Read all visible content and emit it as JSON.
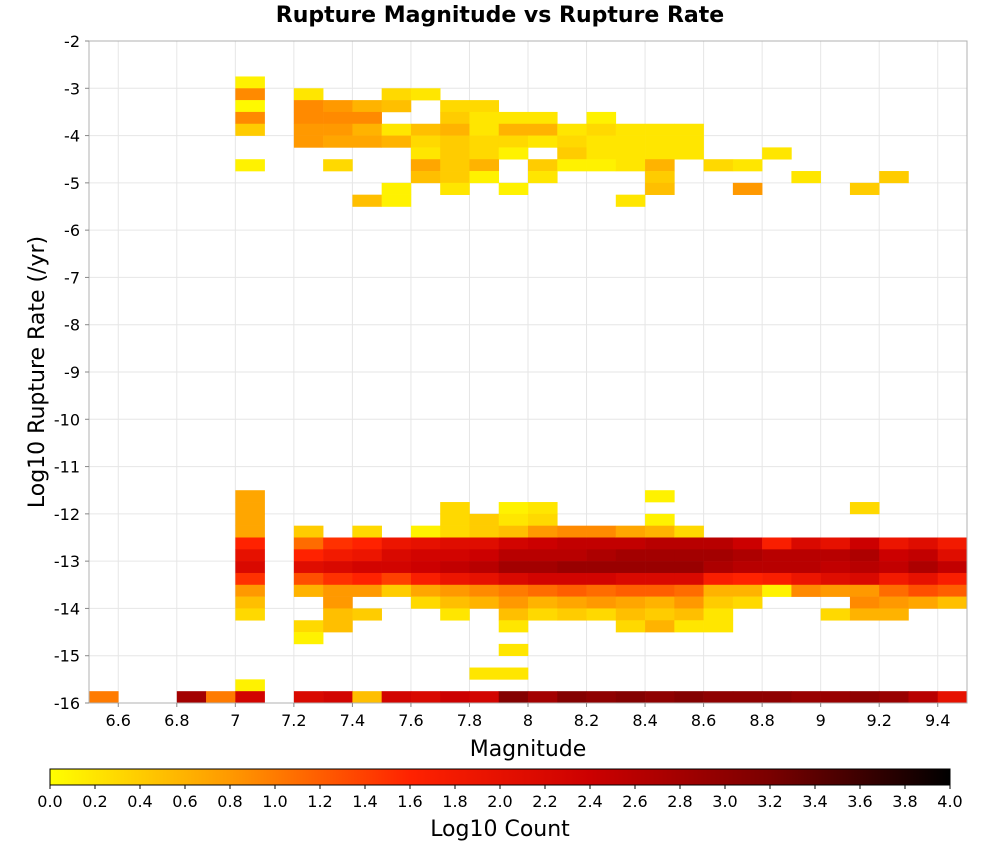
{
  "chart_data": {
    "type": "heatmap",
    "title": "Rupture Magnitude vs Rupture Rate",
    "xlabel": "Magnitude",
    "ylabel": "Log10 Rupture Rate (/yr)",
    "xlim": [
      6.5,
      9.5
    ],
    "ylim": [
      -16,
      -2
    ],
    "x_ticks": [
      "6.6",
      "6.8",
      "7",
      "7.2",
      "7.4",
      "7.6",
      "7.8",
      "8",
      "8.2",
      "8.4",
      "8.6",
      "8.8",
      "9",
      "9.2",
      "9.4"
    ],
    "y_ticks": [
      "-2",
      "-3",
      "-4",
      "-5",
      "-6",
      "-7",
      "-8",
      "-9",
      "-10",
      "-11",
      "-12",
      "-13",
      "-14",
      "-15",
      "-16"
    ],
    "x_bin_width": 0.1,
    "y_bin_height": 0.25,
    "grid": true,
    "colorbar": {
      "label": "Log10 Count",
      "min": 0.0,
      "max": 4.0,
      "ticks": [
        "0.0",
        "0.2",
        "0.4",
        "0.6",
        "0.8",
        "1.0",
        "1.2",
        "1.4",
        "1.6",
        "1.8",
        "2.0",
        "2.2",
        "2.4",
        "2.6",
        "2.8",
        "3.0",
        "3.2",
        "3.4",
        "3.6",
        "3.8",
        "4.0"
      ],
      "colors": [
        "#ffff00",
        "#ff9900",
        "#ff2200",
        "#cc0000",
        "#7a0000",
        "#000000"
      ]
    },
    "cells_note": "each cell: [x_center, y_center, log10_count]",
    "cells": [
      [
        7.05,
        -2.875,
        0.1
      ],
      [
        7.05,
        -3.125,
        0.9
      ],
      [
        7.05,
        -3.375,
        0.05
      ],
      [
        7.05,
        -3.625,
        0.9
      ],
      [
        7.05,
        -3.875,
        0.4
      ],
      [
        7.05,
        -4.625,
        0.1
      ],
      [
        7.25,
        -3.125,
        0.2
      ],
      [
        7.25,
        -3.375,
        0.9
      ],
      [
        7.25,
        -3.625,
        0.9
      ],
      [
        7.25,
        -3.875,
        0.8
      ],
      [
        7.25,
        -4.125,
        0.8
      ],
      [
        7.35,
        -3.375,
        0.8
      ],
      [
        7.35,
        -3.625,
        0.9
      ],
      [
        7.35,
        -3.875,
        0.8
      ],
      [
        7.35,
        -4.125,
        0.7
      ],
      [
        7.35,
        -4.625,
        0.3
      ],
      [
        7.45,
        -3.375,
        0.6
      ],
      [
        7.45,
        -3.625,
        0.9
      ],
      [
        7.45,
        -3.875,
        0.6
      ],
      [
        7.45,
        -4.125,
        0.7
      ],
      [
        7.45,
        -5.375,
        0.5
      ],
      [
        7.55,
        -3.125,
        0.3
      ],
      [
        7.55,
        -3.375,
        0.5
      ],
      [
        7.55,
        -3.875,
        0.2
      ],
      [
        7.55,
        -4.125,
        0.6
      ],
      [
        7.55,
        -5.125,
        0.1
      ],
      [
        7.55,
        -5.375,
        0.1
      ],
      [
        7.65,
        -3.125,
        0.2
      ],
      [
        7.65,
        -3.875,
        0.5
      ],
      [
        7.65,
        -4.125,
        0.3
      ],
      [
        7.65,
        -4.375,
        0.2
      ],
      [
        7.65,
        -4.625,
        0.7
      ],
      [
        7.65,
        -4.875,
        0.5
      ],
      [
        7.75,
        -3.375,
        0.3
      ],
      [
        7.75,
        -3.625,
        0.4
      ],
      [
        7.75,
        -3.875,
        0.6
      ],
      [
        7.75,
        -4.125,
        0.4
      ],
      [
        7.75,
        -4.375,
        0.4
      ],
      [
        7.75,
        -4.625,
        0.4
      ],
      [
        7.75,
        -4.875,
        0.4
      ],
      [
        7.75,
        -5.125,
        0.2
      ],
      [
        7.85,
        -3.375,
        0.3
      ],
      [
        7.85,
        -3.625,
        0.2
      ],
      [
        7.85,
        -3.875,
        0.2
      ],
      [
        7.85,
        -4.125,
        0.3
      ],
      [
        7.85,
        -4.375,
        0.3
      ],
      [
        7.85,
        -4.625,
        0.6
      ],
      [
        7.85,
        -4.875,
        0.1
      ],
      [
        7.95,
        -3.625,
        0.2
      ],
      [
        7.95,
        -3.875,
        0.6
      ],
      [
        7.95,
        -4.125,
        0.3
      ],
      [
        7.95,
        -4.375,
        0.1
      ],
      [
        7.95,
        -5.125,
        0.1
      ],
      [
        8.05,
        -3.625,
        0.2
      ],
      [
        8.05,
        -3.875,
        0.6
      ],
      [
        8.05,
        -4.125,
        0.2
      ],
      [
        8.05,
        -4.625,
        0.4
      ],
      [
        8.05,
        -4.875,
        0.2
      ],
      [
        8.15,
        -3.875,
        0.2
      ],
      [
        8.15,
        -4.125,
        0.3
      ],
      [
        8.15,
        -4.375,
        0.4
      ],
      [
        8.15,
        -4.625,
        0.1
      ],
      [
        8.25,
        -3.625,
        0.1
      ],
      [
        8.25,
        -3.875,
        0.3
      ],
      [
        8.25,
        -4.125,
        0.2
      ],
      [
        8.25,
        -4.375,
        0.2
      ],
      [
        8.25,
        -4.625,
        0.1
      ],
      [
        8.35,
        -3.875,
        0.2
      ],
      [
        8.35,
        -4.125,
        0.2
      ],
      [
        8.35,
        -4.375,
        0.2
      ],
      [
        8.35,
        -4.625,
        0.2
      ],
      [
        8.35,
        -5.375,
        0.2
      ],
      [
        8.45,
        -3.875,
        0.2
      ],
      [
        8.45,
        -4.125,
        0.2
      ],
      [
        8.45,
        -4.375,
        0.2
      ],
      [
        8.45,
        -4.625,
        0.6
      ],
      [
        8.45,
        -4.875,
        0.4
      ],
      [
        8.45,
        -5.125,
        0.5
      ],
      [
        8.55,
        -3.875,
        0.2
      ],
      [
        8.55,
        -4.125,
        0.2
      ],
      [
        8.55,
        -4.375,
        0.2
      ],
      [
        8.65,
        -4.625,
        0.3
      ],
      [
        8.75,
        -4.625,
        0.2
      ],
      [
        8.75,
        -5.125,
        0.8
      ],
      [
        8.85,
        -4.375,
        0.2
      ],
      [
        8.95,
        -4.875,
        0.2
      ],
      [
        9.15,
        -5.125,
        0.4
      ],
      [
        9.25,
        -4.875,
        0.4
      ],
      [
        7.05,
        -11.625,
        0.7
      ],
      [
        7.05,
        -11.875,
        0.7
      ],
      [
        7.05,
        -12.125,
        0.7
      ],
      [
        7.05,
        -12.375,
        0.7
      ],
      [
        7.05,
        -12.625,
        1.6
      ],
      [
        7.05,
        -12.875,
        2.0
      ],
      [
        7.05,
        -13.125,
        2.2
      ],
      [
        7.05,
        -13.375,
        1.5
      ],
      [
        7.05,
        -13.625,
        0.8
      ],
      [
        7.05,
        -13.875,
        0.5
      ],
      [
        7.05,
        -14.125,
        0.3
      ],
      [
        7.25,
        -12.375,
        0.4
      ],
      [
        7.25,
        -12.625,
        1.1
      ],
      [
        7.25,
        -12.875,
        1.6
      ],
      [
        7.25,
        -13.125,
        2.1
      ],
      [
        7.25,
        -13.375,
        1.3
      ],
      [
        7.25,
        -13.625,
        0.6
      ],
      [
        7.25,
        -14.375,
        0.3
      ],
      [
        7.25,
        -14.625,
        0.1
      ],
      [
        7.35,
        -12.625,
        1.5
      ],
      [
        7.35,
        -12.875,
        1.8
      ],
      [
        7.35,
        -13.125,
        2.2
      ],
      [
        7.35,
        -13.375,
        1.5
      ],
      [
        7.35,
        -13.625,
        0.8
      ],
      [
        7.35,
        -13.875,
        0.8
      ],
      [
        7.35,
        -14.125,
        0.5
      ],
      [
        7.35,
        -14.375,
        0.5
      ],
      [
        7.45,
        -12.375,
        0.3
      ],
      [
        7.45,
        -12.625,
        1.6
      ],
      [
        7.45,
        -12.875,
        1.9
      ],
      [
        7.45,
        -13.125,
        2.3
      ],
      [
        7.45,
        -13.375,
        1.6
      ],
      [
        7.45,
        -13.625,
        0.8
      ],
      [
        7.45,
        -14.125,
        0.4
      ],
      [
        7.55,
        -12.625,
        1.9
      ],
      [
        7.55,
        -12.875,
        2.2
      ],
      [
        7.55,
        -13.125,
        2.3
      ],
      [
        7.55,
        -13.375,
        1.4
      ],
      [
        7.55,
        -13.625,
        0.4
      ],
      [
        7.65,
        -12.375,
        0.1
      ],
      [
        7.65,
        -12.625,
        2.0
      ],
      [
        7.65,
        -12.875,
        2.3
      ],
      [
        7.65,
        -13.125,
        2.4
      ],
      [
        7.65,
        -13.375,
        1.7
      ],
      [
        7.65,
        -13.625,
        0.7
      ],
      [
        7.65,
        -13.875,
        0.3
      ],
      [
        7.75,
        -11.875,
        0.3
      ],
      [
        7.75,
        -12.125,
        0.3
      ],
      [
        7.75,
        -12.375,
        0.3
      ],
      [
        7.75,
        -12.625,
        2.1
      ],
      [
        7.75,
        -12.875,
        2.3
      ],
      [
        7.75,
        -13.125,
        2.5
      ],
      [
        7.75,
        -13.375,
        1.9
      ],
      [
        7.75,
        -13.625,
        0.8
      ],
      [
        7.75,
        -13.875,
        0.5
      ],
      [
        7.75,
        -14.125,
        0.2
      ],
      [
        7.85,
        -12.125,
        0.4
      ],
      [
        7.85,
        -12.375,
        0.4
      ],
      [
        7.85,
        -12.625,
        2.1
      ],
      [
        7.85,
        -12.875,
        2.4
      ],
      [
        7.85,
        -13.125,
        2.6
      ],
      [
        7.85,
        -13.375,
        2.0
      ],
      [
        7.85,
        -13.625,
        0.9
      ],
      [
        7.85,
        -13.875,
        0.6
      ],
      [
        7.85,
        -15.375,
        0.2
      ],
      [
        7.95,
        -11.875,
        0.1
      ],
      [
        7.95,
        -12.125,
        0.2
      ],
      [
        7.95,
        -12.375,
        0.5
      ],
      [
        7.95,
        -12.625,
        2.3
      ],
      [
        7.95,
        -12.875,
        2.6
      ],
      [
        7.95,
        -13.125,
        2.8
      ],
      [
        7.95,
        -13.375,
        2.2
      ],
      [
        7.95,
        -13.625,
        1.0
      ],
      [
        7.95,
        -13.875,
        0.8
      ],
      [
        7.95,
        -14.125,
        0.5
      ],
      [
        7.95,
        -14.375,
        0.2
      ],
      [
        7.95,
        -14.875,
        0.2
      ],
      [
        7.95,
        -15.375,
        0.2
      ],
      [
        8.05,
        -11.875,
        0.2
      ],
      [
        8.05,
        -12.125,
        0.3
      ],
      [
        8.05,
        -12.375,
        0.8
      ],
      [
        8.05,
        -12.625,
        2.4
      ],
      [
        8.05,
        -12.875,
        2.6
      ],
      [
        8.05,
        -13.125,
        2.8
      ],
      [
        8.05,
        -13.375,
        2.3
      ],
      [
        8.05,
        -13.625,
        1.1
      ],
      [
        8.05,
        -13.875,
        0.6
      ],
      [
        8.05,
        -14.125,
        0.3
      ],
      [
        8.15,
        -12.375,
        0.9
      ],
      [
        8.15,
        -12.625,
        2.5
      ],
      [
        8.15,
        -12.875,
        2.6
      ],
      [
        8.15,
        -13.125,
        2.9
      ],
      [
        8.15,
        -13.375,
        2.3
      ],
      [
        8.15,
        -13.625,
        1.2
      ],
      [
        8.15,
        -13.875,
        0.7
      ],
      [
        8.15,
        -14.125,
        0.4
      ],
      [
        8.25,
        -12.375,
        0.9
      ],
      [
        8.25,
        -12.625,
        2.5
      ],
      [
        8.25,
        -12.875,
        2.7
      ],
      [
        8.25,
        -13.125,
        2.9
      ],
      [
        8.25,
        -13.375,
        2.3
      ],
      [
        8.25,
        -13.625,
        1.1
      ],
      [
        8.25,
        -13.875,
        0.8
      ],
      [
        8.25,
        -14.125,
        0.3
      ],
      [
        8.35,
        -12.375,
        0.7
      ],
      [
        8.35,
        -12.625,
        2.5
      ],
      [
        8.35,
        -12.875,
        2.8
      ],
      [
        8.35,
        -13.125,
        2.9
      ],
      [
        8.35,
        -13.375,
        2.2
      ],
      [
        8.35,
        -13.625,
        1.2
      ],
      [
        8.35,
        -13.875,
        0.7
      ],
      [
        8.35,
        -14.125,
        0.5
      ],
      [
        8.35,
        -14.375,
        0.3
      ],
      [
        8.45,
        -11.625,
        0.1
      ],
      [
        8.45,
        -12.125,
        0.1
      ],
      [
        8.45,
        -12.375,
        0.6
      ],
      [
        8.45,
        -12.625,
        2.6
      ],
      [
        8.45,
        -12.875,
        2.8
      ],
      [
        8.45,
        -13.125,
        2.9
      ],
      [
        8.45,
        -13.375,
        2.2
      ],
      [
        8.45,
        -13.625,
        1.2
      ],
      [
        8.45,
        -13.875,
        0.6
      ],
      [
        8.45,
        -14.125,
        0.4
      ],
      [
        8.45,
        -14.375,
        0.6
      ],
      [
        8.55,
        -12.375,
        0.3
      ],
      [
        8.55,
        -12.625,
        2.6
      ],
      [
        8.55,
        -12.875,
        2.8
      ],
      [
        8.55,
        -13.125,
        2.9
      ],
      [
        8.55,
        -13.375,
        2.2
      ],
      [
        8.55,
        -13.625,
        1.1
      ],
      [
        8.55,
        -13.875,
        0.8
      ],
      [
        8.55,
        -14.125,
        0.5
      ],
      [
        8.55,
        -14.375,
        0.2
      ],
      [
        8.65,
        -12.625,
        2.6
      ],
      [
        8.65,
        -12.875,
        2.8
      ],
      [
        8.65,
        -13.125,
        2.7
      ],
      [
        8.65,
        -13.375,
        1.7
      ],
      [
        8.65,
        -13.625,
        0.6
      ],
      [
        8.65,
        -13.875,
        0.4
      ],
      [
        8.65,
        -14.125,
        0.2
      ],
      [
        8.65,
        -14.375,
        0.2
      ],
      [
        8.75,
        -12.625,
        2.4
      ],
      [
        8.75,
        -12.875,
        2.7
      ],
      [
        8.75,
        -13.125,
        2.6
      ],
      [
        8.75,
        -13.375,
        1.6
      ],
      [
        8.75,
        -13.625,
        0.6
      ],
      [
        8.75,
        -13.875,
        0.3
      ],
      [
        8.85,
        -12.625,
        1.7
      ],
      [
        8.85,
        -12.875,
        2.6
      ],
      [
        8.85,
        -13.125,
        2.6
      ],
      [
        8.85,
        -13.375,
        1.7
      ],
      [
        8.85,
        -13.625,
        0.1
      ],
      [
        8.95,
        -12.625,
        2.2
      ],
      [
        8.95,
        -12.875,
        2.6
      ],
      [
        8.95,
        -13.125,
        2.6
      ],
      [
        8.95,
        -13.375,
        1.9
      ],
      [
        8.95,
        -13.625,
        0.9
      ],
      [
        9.05,
        -12.625,
        2.0
      ],
      [
        9.05,
        -12.875,
        2.6
      ],
      [
        9.05,
        -13.125,
        2.5
      ],
      [
        9.05,
        -13.375,
        2.1
      ],
      [
        9.05,
        -13.625,
        0.8
      ],
      [
        9.05,
        -14.125,
        0.3
      ],
      [
        9.15,
        -11.875,
        0.3
      ],
      [
        9.15,
        -12.625,
        2.4
      ],
      [
        9.15,
        -12.875,
        2.7
      ],
      [
        9.15,
        -13.125,
        2.6
      ],
      [
        9.15,
        -13.375,
        2.2
      ],
      [
        9.15,
        -13.625,
        0.8
      ],
      [
        9.15,
        -13.875,
        0.9
      ],
      [
        9.15,
        -14.125,
        0.6
      ],
      [
        9.25,
        -12.625,
        1.9
      ],
      [
        9.25,
        -12.875,
        2.4
      ],
      [
        9.25,
        -13.125,
        2.5
      ],
      [
        9.25,
        -13.375,
        1.8
      ],
      [
        9.25,
        -13.625,
        1.1
      ],
      [
        9.25,
        -13.875,
        0.8
      ],
      [
        9.25,
        -14.125,
        0.6
      ],
      [
        9.35,
        -12.625,
        2.1
      ],
      [
        9.35,
        -12.875,
        2.5
      ],
      [
        9.35,
        -13.125,
        2.7
      ],
      [
        9.35,
        -13.375,
        2.0
      ],
      [
        9.35,
        -13.625,
        1.3
      ],
      [
        9.35,
        -13.875,
        0.7
      ],
      [
        9.45,
        -12.625,
        1.8
      ],
      [
        9.45,
        -12.875,
        2.1
      ],
      [
        9.45,
        -13.125,
        2.5
      ],
      [
        9.45,
        -13.375,
        1.7
      ],
      [
        9.45,
        -13.625,
        1.2
      ],
      [
        9.45,
        -13.875,
        0.5
      ],
      [
        7.05,
        -15.625,
        0.1
      ],
      [
        6.55,
        -15.875,
        1.0
      ],
      [
        6.85,
        -15.875,
        2.8
      ],
      [
        6.95,
        -15.875,
        1.0
      ],
      [
        7.05,
        -15.875,
        2.3
      ],
      [
        7.25,
        -15.875,
        2.2
      ],
      [
        7.35,
        -15.875,
        2.3
      ],
      [
        7.45,
        -15.875,
        0.5
      ],
      [
        7.55,
        -15.875,
        2.3
      ],
      [
        7.65,
        -15.875,
        2.2
      ],
      [
        7.75,
        -15.875,
        2.4
      ],
      [
        7.85,
        -15.875,
        2.3
      ],
      [
        7.95,
        -15.875,
        3.1
      ],
      [
        8.05,
        -15.875,
        2.8
      ],
      [
        8.15,
        -15.875,
        3.1
      ],
      [
        8.25,
        -15.875,
        3.0
      ],
      [
        8.35,
        -15.875,
        3.1
      ],
      [
        8.45,
        -15.875,
        3.0
      ],
      [
        8.55,
        -15.875,
        3.1
      ],
      [
        8.65,
        -15.875,
        3.0
      ],
      [
        8.75,
        -15.875,
        3.0
      ],
      [
        8.85,
        -15.875,
        3.0
      ],
      [
        8.95,
        -15.875,
        2.9
      ],
      [
        9.05,
        -15.875,
        2.9
      ],
      [
        9.15,
        -15.875,
        3.0
      ],
      [
        9.25,
        -15.875,
        2.9
      ],
      [
        9.35,
        -15.875,
        2.6
      ],
      [
        9.45,
        -15.875,
        2.0
      ]
    ]
  }
}
